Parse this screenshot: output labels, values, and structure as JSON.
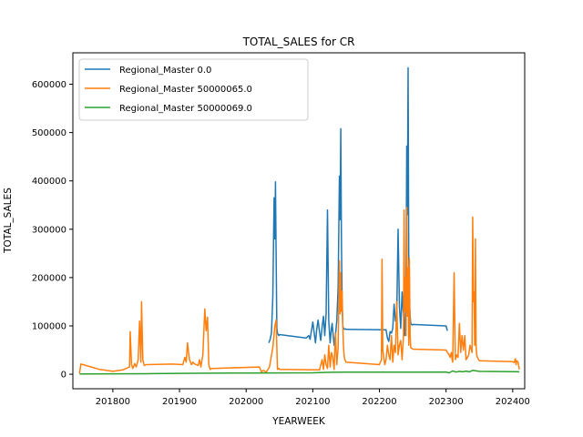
{
  "chart_data": {
    "type": "line",
    "title": "TOTAL_SALES for CR",
    "xlabel": "YEARWEEK",
    "ylabel": "TOTAL_SALES",
    "xlim": [
      201740,
      202418
    ],
    "ylim": [
      -30000,
      665000
    ],
    "xticks": [
      201800,
      201900,
      202000,
      202100,
      202200,
      202300,
      202400
    ],
    "yticks": [
      0,
      100000,
      200000,
      300000,
      400000,
      500000,
      600000
    ],
    "legend_position": "upper-left",
    "grid": false,
    "series": [
      {
        "name": "Regional_Master 0.0",
        "color": "#1f77b4",
        "x": [
          202034,
          202036,
          202038,
          202040,
          202042,
          202043,
          202044,
          202045,
          202046,
          202047,
          202048,
          202049,
          202050,
          202090,
          202094,
          202096,
          202100,
          202104,
          202106,
          202108,
          202110,
          202112,
          202114,
          202116,
          202118,
          202120,
          202122,
          202124,
          202126,
          202128,
          202129,
          202130,
          202132,
          202134,
          202136,
          202138,
          202140,
          202141,
          202142,
          202143,
          202144,
          202145,
          202146,
          202147,
          202148,
          202149,
          202150,
          202210,
          202212,
          202214,
          202216,
          202218,
          202220,
          202222,
          202224,
          202226,
          202228,
          202230,
          202232,
          202234,
          202236,
          202238,
          202240,
          202241,
          202242,
          202243,
          202244,
          202245,
          202246,
          202247,
          202248,
          202249,
          202250,
          202300,
          202302
        ],
        "y": [
          65000,
          72000,
          85000,
          160000,
          365000,
          280000,
          398000,
          250000,
          95000,
          85000,
          82000,
          80000,
          82000,
          75000,
          80000,
          72000,
          108000,
          65000,
          95000,
          112000,
          88000,
          70000,
          98000,
          120000,
          80000,
          125000,
          340000,
          110000,
          65000,
          95000,
          105000,
          90000,
          60000,
          80000,
          110000,
          180000,
          410000,
          320000,
          508000,
          280000,
          140000,
          100000,
          95000,
          94000,
          93000,
          94000,
          93000,
          92000,
          75000,
          68000,
          88000,
          85000,
          95000,
          145000,
          110000,
          120000,
          300000,
          140000,
          95000,
          170000,
          120000,
          80000,
          200000,
          472000,
          330000,
          634000,
          250000,
          150000,
          120000,
          105000,
          103000,
          102000,
          103000,
          100000,
          90000
        ]
      },
      {
        "name": "Regional_Master 50000065.0",
        "color": "#ff7f0e",
        "x": [
          201750,
          201752,
          201760,
          201770,
          201780,
          201790,
          201800,
          201810,
          201815,
          201820,
          201825,
          201826,
          201828,
          201830,
          201833,
          201835,
          201838,
          201840,
          201842,
          201843,
          201845,
          201847,
          201850,
          201890,
          201905,
          201908,
          201910,
          201912,
          201915,
          201918,
          201920,
          201922,
          201925,
          201928,
          201930,
          201932,
          201935,
          201938,
          201940,
          201942,
          201944,
          201946,
          201948,
          201950,
          202020,
          202023,
          202026,
          202030,
          202035,
          202040,
          202043,
          202045,
          202047,
          202049,
          202050,
          202110,
          202114,
          202116,
          202118,
          202120,
          202122,
          202124,
          202126,
          202128,
          202130,
          202132,
          202134,
          202136,
          202138,
          202140,
          202141,
          202142,
          202143,
          202144,
          202145,
          202146,
          202147,
          202148,
          202149,
          202150,
          202200,
          202203,
          202204,
          202205,
          202206,
          202208,
          202210,
          202212,
          202214,
          202216,
          202218,
          202220,
          202222,
          202224,
          202226,
          202228,
          202230,
          202232,
          202234,
          202236,
          202237,
          202238,
          202239,
          202240,
          202241,
          202242,
          202243,
          202244,
          202245,
          202246,
          202247,
          202248,
          202250,
          202300,
          202302,
          202304,
          202306,
          202308,
          202309,
          202310,
          202312,
          202314,
          202316,
          202318,
          202320,
          202322,
          202324,
          202326,
          202328,
          202330,
          202332,
          202334,
          202336,
          202338,
          202339,
          202340,
          202341,
          202342,
          202343,
          202344,
          202345,
          202346,
          202347,
          202348,
          202349,
          202350,
          202400,
          202402,
          202404,
          202405,
          202406,
          202408,
          202410
        ],
        "y": [
          2000,
          21000,
          18000,
          14000,
          10000,
          8000,
          6000,
          8000,
          9000,
          12000,
          15000,
          88000,
          20000,
          12000,
          22000,
          15000,
          30000,
          110000,
          25000,
          150000,
          30000,
          18000,
          20000,
          21000,
          20000,
          35000,
          25000,
          65000,
          30000,
          20000,
          25000,
          22000,
          20000,
          18000,
          30000,
          15000,
          40000,
          135000,
          90000,
          118000,
          20000,
          10000,
          12000,
          12000,
          15000,
          5000,
          8000,
          4000,
          15000,
          55000,
          100000,
          112000,
          10000,
          12000,
          10000,
          9000,
          30000,
          10000,
          40000,
          20000,
          12000,
          60000,
          15000,
          45000,
          35000,
          10000,
          85000,
          20000,
          55000,
          235000,
          125000,
          210000,
          130000,
          172000,
          100000,
          60000,
          40000,
          30000,
          28000,
          25000,
          20000,
          30000,
          238000,
          50000,
          40000,
          20000,
          30000,
          60000,
          40000,
          30000,
          80000,
          25000,
          60000,
          45000,
          150000,
          40000,
          60000,
          70000,
          30000,
          80000,
          340000,
          130000,
          200000,
          80000,
          345000,
          120000,
          220000,
          60000,
          240000,
          80000,
          55000,
          54000,
          52000,
          50000,
          45000,
          42000,
          35000,
          45000,
          30000,
          25000,
          210000,
          30000,
          40000,
          35000,
          105000,
          45000,
          80000,
          50000,
          80000,
          30000,
          35000,
          40000,
          60000,
          50000,
          45000,
          325000,
          150000,
          170000,
          60000,
          280000,
          60000,
          40000,
          35000,
          32000,
          30000,
          28000,
          26000,
          24000,
          32000,
          20000,
          28000,
          25000,
          10000
        ]
      },
      {
        "name": "Regional_Master 50000069.0",
        "color": "#2ca02c",
        "x": [
          201750,
          201800,
          201850,
          201860,
          201880,
          201900,
          201950,
          202000,
          202050,
          202100,
          202110,
          202130,
          202150,
          202200,
          202250,
          202300,
          202305,
          202310,
          202315,
          202320,
          202325,
          202330,
          202335,
          202340,
          202345,
          202350,
          202400,
          202410
        ],
        "y": [
          500,
          800,
          1000,
          1200,
          1500,
          1800,
          2200,
          2500,
          2800,
          3000,
          3500,
          4000,
          4200,
          4400,
          4500,
          4600,
          3000,
          7000,
          4500,
          6000,
          5000,
          6500,
          5000,
          8000,
          7000,
          6000,
          5500,
          5000
        ]
      }
    ]
  }
}
